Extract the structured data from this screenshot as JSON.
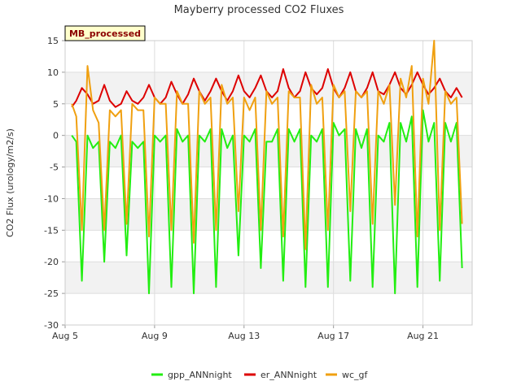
{
  "chart_data": {
    "type": "line",
    "title": "Mayberry processed CO2 Fluxes",
    "ylabel": "CO2 Flux (urology/m2/s)",
    "xlabel": "",
    "badge": "MB_processed",
    "ylim": [
      -30,
      15
    ],
    "yticks": [
      15,
      10,
      5,
      0,
      -5,
      -10,
      -15,
      -20,
      -25,
      -30
    ],
    "xlim": [
      5,
      23.2
    ],
    "xticks": [
      {
        "day": 5,
        "label": "Aug 5"
      },
      {
        "day": 9,
        "label": "Aug 9"
      },
      {
        "day": 13,
        "label": "Aug 13"
      },
      {
        "day": 17,
        "label": "Aug 17"
      },
      {
        "day": 21,
        "label": "Aug 21"
      }
    ],
    "grid": true,
    "legend_position": "bottom",
    "series": [
      {
        "name": "gpp_ANNnight",
        "color": "#22ee11",
        "x": [
          5.3,
          5.5,
          5.75,
          6.0,
          6.25,
          6.5,
          6.75,
          7.0,
          7.25,
          7.5,
          7.75,
          8.0,
          8.25,
          8.5,
          8.75,
          9.0,
          9.25,
          9.5,
          9.75,
          10.0,
          10.25,
          10.5,
          10.75,
          11.0,
          11.25,
          11.5,
          11.75,
          12.0,
          12.25,
          12.5,
          12.75,
          13.0,
          13.25,
          13.5,
          13.75,
          14.0,
          14.25,
          14.5,
          14.75,
          15.0,
          15.25,
          15.5,
          15.75,
          16.0,
          16.25,
          16.5,
          16.75,
          17.0,
          17.25,
          17.5,
          17.75,
          18.0,
          18.25,
          18.5,
          18.75,
          19.0,
          19.25,
          19.5,
          19.75,
          20.0,
          20.25,
          20.5,
          20.75,
          21.0,
          21.25,
          21.5,
          21.75,
          22.0,
          22.25,
          22.5,
          22.75
        ],
        "values": [
          0,
          -1,
          -23,
          0,
          -2,
          -1,
          -20,
          -1,
          -2,
          0,
          -19,
          -1,
          -2,
          -1,
          -25,
          0,
          -1,
          0,
          -24,
          1,
          -1,
          0,
          -25,
          0,
          -1,
          1,
          -24,
          1,
          -2,
          0,
          -19,
          0,
          -1,
          1,
          -21,
          -1,
          -1,
          1,
          -23,
          1,
          -1,
          1,
          -24,
          0,
          -1,
          1,
          -24,
          2,
          0,
          1,
          -23,
          1,
          -2,
          1,
          -24,
          0,
          -1,
          2,
          -25,
          2,
          -1,
          3,
          -24,
          4,
          -1,
          2,
          -23,
          2,
          -1,
          2,
          -21
        ]
      },
      {
        "name": "er_ANNnight",
        "color": "#dd0000",
        "x": [
          5.3,
          5.5,
          5.75,
          6.0,
          6.25,
          6.5,
          6.75,
          7.0,
          7.25,
          7.5,
          7.75,
          8.0,
          8.25,
          8.5,
          8.75,
          9.0,
          9.25,
          9.5,
          9.75,
          10.0,
          10.25,
          10.5,
          10.75,
          11.0,
          11.25,
          11.5,
          11.75,
          12.0,
          12.25,
          12.5,
          12.75,
          13.0,
          13.25,
          13.5,
          13.75,
          14.0,
          14.25,
          14.5,
          14.75,
          15.0,
          15.25,
          15.5,
          15.75,
          16.0,
          16.25,
          16.5,
          16.75,
          17.0,
          17.25,
          17.5,
          17.75,
          18.0,
          18.25,
          18.5,
          18.75,
          19.0,
          19.25,
          19.5,
          19.75,
          20.0,
          20.25,
          20.5,
          20.75,
          21.0,
          21.25,
          21.5,
          21.75,
          22.0,
          22.25,
          22.5,
          22.75
        ],
        "values": [
          4.5,
          5.5,
          7.5,
          6.5,
          5,
          5.5,
          8,
          5.5,
          4.5,
          5,
          7,
          5.5,
          5,
          6,
          8,
          6,
          5,
          6,
          8.5,
          6.5,
          5,
          6.5,
          9,
          7,
          5.5,
          7,
          9,
          7,
          5.5,
          7,
          9.5,
          7,
          6,
          7.5,
          9.5,
          7,
          6,
          7,
          10.5,
          7.5,
          6,
          7,
          10,
          7.5,
          6.5,
          7.5,
          10.5,
          7.5,
          6,
          7.5,
          10,
          7,
          6,
          7.5,
          10,
          7,
          6.5,
          8,
          10,
          7.5,
          6.5,
          8,
          10,
          8,
          6.5,
          7.5,
          9,
          7,
          6,
          7.5,
          6
        ]
      },
      {
        "name": "wc_gf",
        "color": "#f0a010",
        "x": [
          5.3,
          5.5,
          5.75,
          6.0,
          6.25,
          6.5,
          6.75,
          7.0,
          7.25,
          7.5,
          7.75,
          8.0,
          8.25,
          8.5,
          8.75,
          9.0,
          9.25,
          9.5,
          9.75,
          10.0,
          10.25,
          10.5,
          10.75,
          11.0,
          11.25,
          11.5,
          11.75,
          12.0,
          12.25,
          12.5,
          12.75,
          13.0,
          13.25,
          13.5,
          13.75,
          14.0,
          14.25,
          14.5,
          14.75,
          15.0,
          15.25,
          15.5,
          15.75,
          16.0,
          16.25,
          16.5,
          16.75,
          17.0,
          17.25,
          17.5,
          17.75,
          18.0,
          18.25,
          18.5,
          18.75,
          19.0,
          19.25,
          19.5,
          19.75,
          20.0,
          20.25,
          20.5,
          20.75,
          21.0,
          21.25,
          21.5,
          21.75,
          22.0,
          22.25,
          22.5,
          22.75
        ],
        "values": [
          5,
          3,
          -15,
          11,
          4,
          2,
          -15,
          4,
          3,
          4,
          -14,
          5,
          4,
          4,
          -16,
          6,
          5,
          5,
          -15,
          7,
          5,
          5,
          -17,
          7,
          5,
          6,
          -15,
          8,
          5,
          6,
          -12,
          6,
          4,
          6,
          -15,
          7,
          5,
          6,
          -16,
          7,
          6,
          6,
          -18,
          8,
          5,
          6,
          -15,
          8,
          6,
          7,
          -12,
          7,
          6,
          7,
          -14,
          7,
          5,
          8,
          -11,
          9,
          6,
          11,
          -16,
          9,
          5,
          15,
          -15,
          7,
          5,
          6,
          -14
        ]
      }
    ]
  }
}
